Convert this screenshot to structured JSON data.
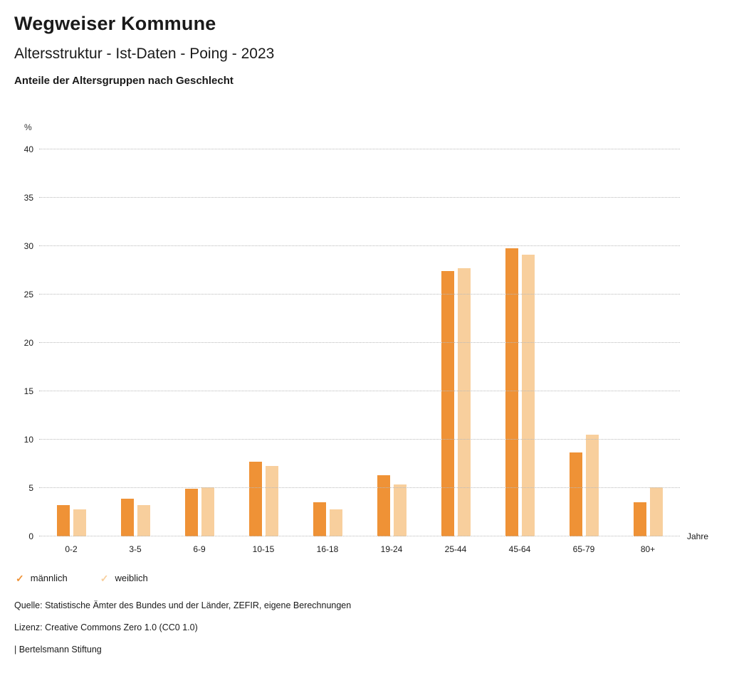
{
  "header": {
    "title": "Wegweiser Kommune",
    "subtitle": "Altersstruktur - Ist-Daten - Poing - 2023",
    "description": "Anteile der Altersgruppen nach Geschlecht"
  },
  "chart_data": {
    "type": "bar",
    "categories": [
      "0-2",
      "3-5",
      "6-9",
      "10-15",
      "16-18",
      "19-24",
      "25-44",
      "45-64",
      "65-79",
      "80+"
    ],
    "series": [
      {
        "name": "männlich",
        "color": "#ef9236",
        "values": [
          3.2,
          3.9,
          4.9,
          7.7,
          3.5,
          6.3,
          27.4,
          29.8,
          8.7,
          3.5
        ]
      },
      {
        "name": "weiblich",
        "color": "#f8cf9d",
        "values": [
          2.8,
          3.2,
          5.1,
          7.3,
          2.8,
          5.4,
          27.7,
          29.1,
          10.5,
          5.1
        ]
      }
    ],
    "ylabel": "%",
    "xlabel": "Jahre",
    "ylim": [
      0,
      40
    ],
    "ytick_step": 5,
    "grid": true,
    "legend_position": "bottom"
  },
  "legend": {
    "marker": "✓"
  },
  "footer": {
    "source": "Quelle: Statistische Ämter des Bundes und der Länder, ZEFIR, eigene Berechnungen",
    "license": "Lizenz: Creative Commons Zero 1.0 (CC0 1.0)",
    "attribution": "| Bertelsmann Stiftung"
  }
}
